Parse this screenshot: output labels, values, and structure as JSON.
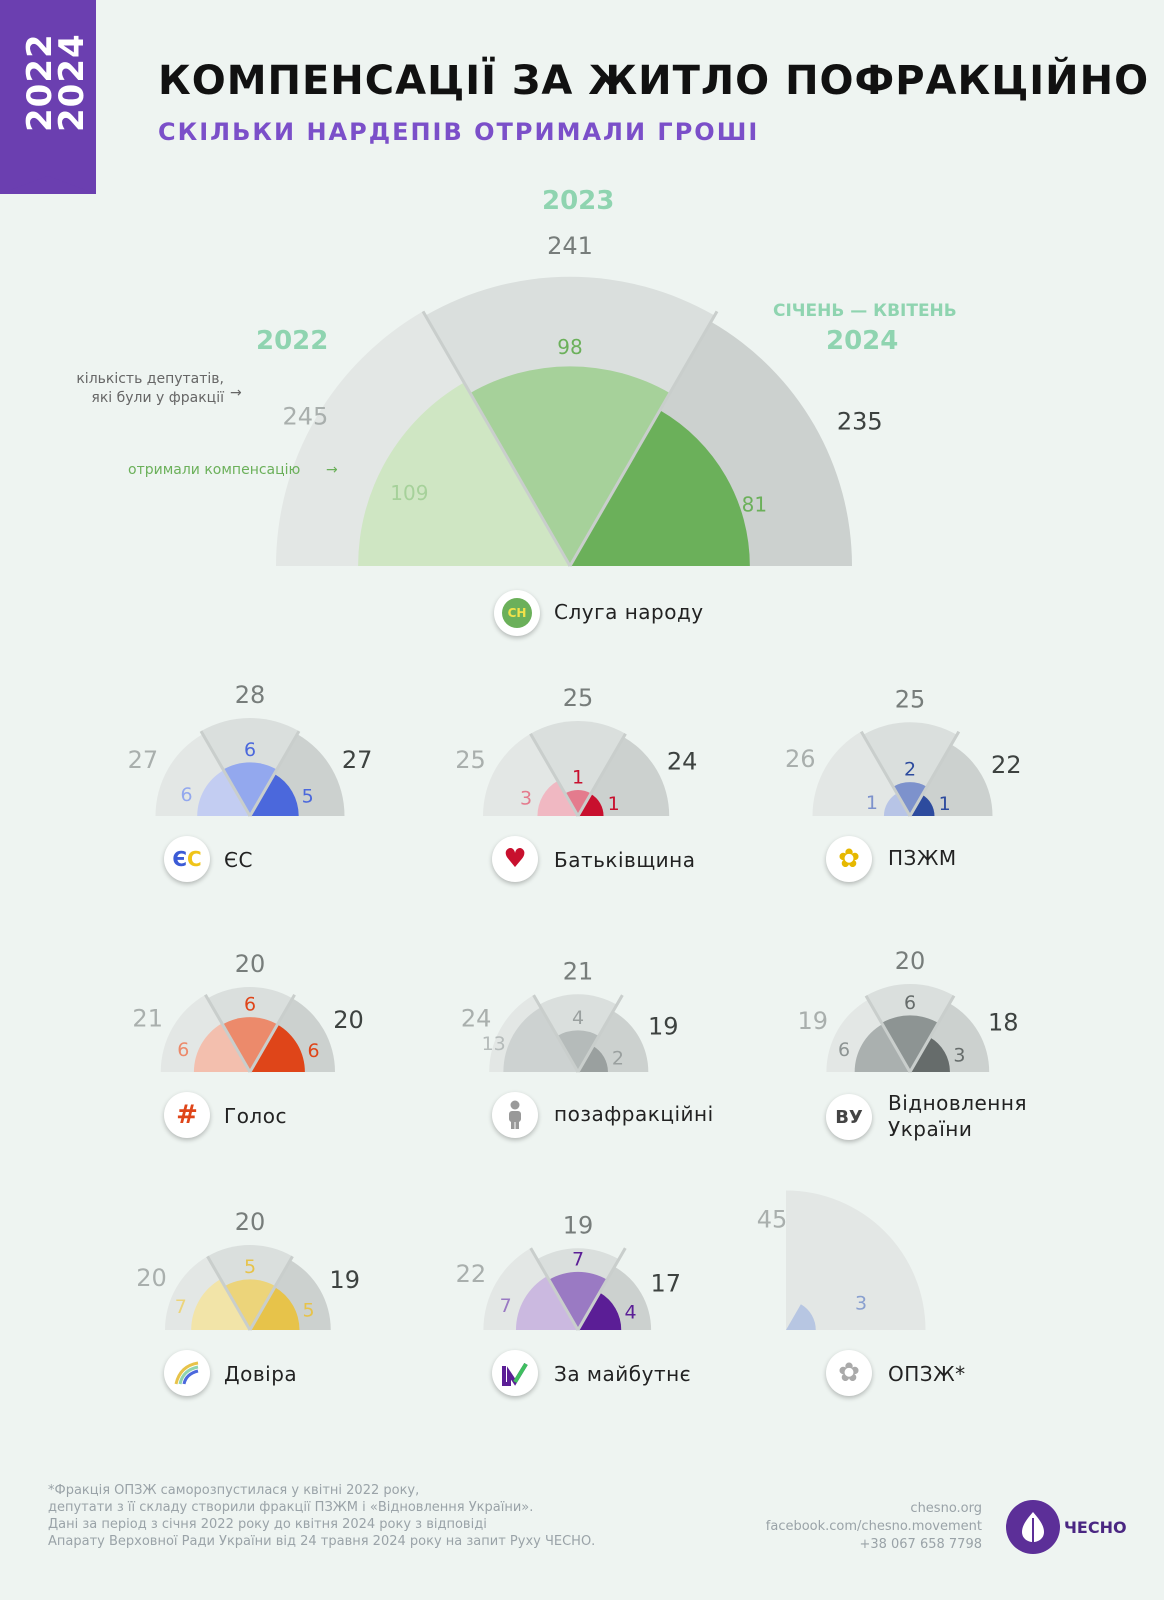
{
  "ribbon": {
    "year1": "2022",
    "year2": "2024"
  },
  "title": "КОМПЕНСАЦІЇ ЗА ЖИТЛО ПОФРАКЦІЙНО",
  "subtitle": "СКІЛЬКИ НАРДЕПІВ ОТРИМАЛИ ГРОШІ",
  "legend": {
    "year_2022": "2022",
    "year_2023": "2023",
    "period_2024": "СІЧЕНЬ — КВІТЕНЬ",
    "year_2024": "2024",
    "members_note": "кількість депутатів, які були у фракції",
    "received_note": "отримали компенсацію"
  },
  "colors": {
    "bg": "#eef4f1",
    "total_light": "#e3e7e5",
    "total_mid": "#dadfdd",
    "total_dark": "#ccd1cf",
    "accent_green": "#8fd4b0",
    "ribbon": "#6b3fb0",
    "subtitle": "#7b4fc9"
  },
  "chart_data": [
    {
      "type": "radial-bar",
      "faction": "Слуга народу",
      "icon": "sluha-logo",
      "colors": [
        "#cfe6c3",
        "#a6d19a",
        "#6bb05a"
      ],
      "periods": [
        "2022",
        "2023",
        "січень — квітень 2024"
      ],
      "members": [
        245,
        241,
        235
      ],
      "received": [
        109,
        98,
        81
      ]
    },
    {
      "type": "radial-bar",
      "faction": "ЄС",
      "icon": "es-logo",
      "colors": [
        "#c3cdf2",
        "#93a8ee",
        "#4b68dc"
      ],
      "periods": [
        "2022",
        "2023",
        "січень — квітень 2024"
      ],
      "members": [
        27,
        28,
        27
      ],
      "received": [
        6,
        6,
        5
      ]
    },
    {
      "type": "radial-bar",
      "faction": "Батьківщина",
      "icon": "heart-icon",
      "colors": [
        "#f0b8c2",
        "#e47b8d",
        "#c8102e"
      ],
      "periods": [
        "2022",
        "2023",
        "січень — квітень 2024"
      ],
      "members": [
        25,
        25,
        24
      ],
      "received": [
        3,
        1,
        1
      ]
    },
    {
      "type": "radial-bar",
      "faction": "ПЗЖМ",
      "icon": "sunflower-icon",
      "colors": [
        "#b7c4e6",
        "#7d92cc",
        "#2d4b9e"
      ],
      "periods": [
        "2022",
        "2023",
        "січень — квітень 2024"
      ],
      "members": [
        26,
        25,
        22
      ],
      "received": [
        1,
        2,
        1
      ]
    },
    {
      "type": "radial-bar",
      "faction": "Голос",
      "icon": "holos-logo",
      "colors": [
        "#f3bfae",
        "#ec8a6b",
        "#df4519"
      ],
      "periods": [
        "2022",
        "2023",
        "січень — квітень 2024"
      ],
      "members": [
        21,
        20,
        20
      ],
      "received": [
        6,
        6,
        6
      ]
    },
    {
      "type": "radial-bar",
      "faction": "позафракційні",
      "icon": "person-icon",
      "colors": [
        "#cdd2d1",
        "#b5bbba",
        "#9aa09f"
      ],
      "periods": [
        "2022",
        "2023",
        "січень — квітень 2024"
      ],
      "members": [
        24,
        21,
        19
      ],
      "received": [
        13,
        4,
        2
      ]
    },
    {
      "type": "radial-bar",
      "faction": "Відновлення України",
      "icon": "vu-logo",
      "colors": [
        "#aab0af",
        "#8d9493",
        "#666c6b"
      ],
      "periods": [
        "2022",
        "2023",
        "січень — квітень 2024"
      ],
      "members": [
        19,
        20,
        18
      ],
      "received": [
        6,
        6,
        3
      ]
    },
    {
      "type": "radial-bar",
      "faction": "Довіра",
      "icon": "rainbow-icon",
      "colors": [
        "#f2e4a8",
        "#ecd47a",
        "#e7c34a"
      ],
      "periods": [
        "2022",
        "2023",
        "січень — квітень 2024"
      ],
      "members": [
        20,
        20,
        19
      ],
      "received": [
        7,
        5,
        5
      ]
    },
    {
      "type": "radial-bar",
      "faction": "За майбутнє",
      "icon": "checkmark-icon",
      "colors": [
        "#cbb9e0",
        "#9a7ac3",
        "#5b1e96"
      ],
      "periods": [
        "2022",
        "2023",
        "січень — квітень 2024"
      ],
      "members": [
        22,
        19,
        17
      ],
      "received": [
        7,
        7,
        4
      ]
    },
    {
      "type": "radial-bar",
      "faction": "ОПЗЖ*",
      "icon": "opzzh-logo",
      "colors": [
        "#b7c6e2"
      ],
      "periods": [
        "2022"
      ],
      "members": [
        45
      ],
      "received": [
        3
      ]
    }
  ],
  "footnote": [
    "*Фракція ОПЗЖ саморозпустилася у квітні 2022 року,",
    "депутати з її складу створили фракції ПЗЖМ і «Відновлення України».",
    "Дані за період з січня 2022 року до квітня 2024 року з відповіді",
    "Апарату Верховної Ради України від 24 травня 2024 року на запит Руху ЧЕСНО."
  ],
  "contacts": [
    "chesno.org",
    "facebook.com/chesno.movement",
    "+38 067 658 7798"
  ],
  "brand": "ЧЕСНО"
}
